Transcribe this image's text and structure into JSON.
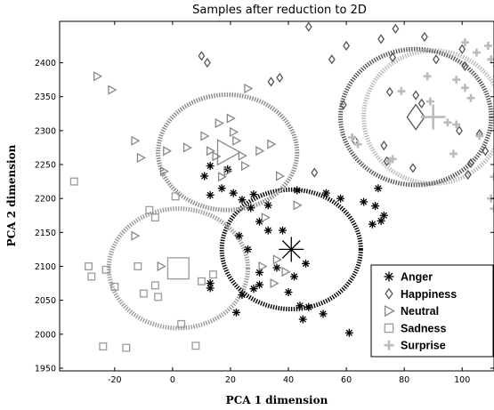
{
  "chart_data": {
    "type": "scatter",
    "title": "Samples after reduction to 2D",
    "xlabel": "PCA 1 dimension",
    "ylabel": "PCA 2 dimension",
    "xlim": [
      -39,
      111
    ],
    "ylim": [
      1946,
      2461
    ],
    "xticks": [
      -20,
      0,
      20,
      40,
      60,
      80,
      100
    ],
    "yticks": [
      1950,
      2000,
      2050,
      2100,
      2150,
      2200,
      2250,
      2300,
      2350,
      2400
    ],
    "grid": false,
    "legend_position": "bottom-right",
    "series": [
      {
        "name": "Anger",
        "marker": "asterisk",
        "color": "#000000",
        "centroid": [
          41,
          2125
        ],
        "radius": [
          24,
          88
        ],
        "points": [
          [
            13,
            2248
          ],
          [
            19,
            2243
          ],
          [
            11,
            2233
          ],
          [
            17,
            2215
          ],
          [
            13,
            2205
          ],
          [
            21,
            2208
          ],
          [
            28,
            2206
          ],
          [
            24,
            2198
          ],
          [
            27,
            2186
          ],
          [
            33,
            2190
          ],
          [
            43,
            2212
          ],
          [
            30,
            2166
          ],
          [
            23,
            2145
          ],
          [
            33,
            2153
          ],
          [
            38,
            2153
          ],
          [
            46,
            2104
          ],
          [
            42,
            2085
          ],
          [
            30,
            2073
          ],
          [
            40,
            2062
          ],
          [
            53,
            2208
          ],
          [
            58,
            2200
          ],
          [
            66,
            2195
          ],
          [
            70,
            2189
          ],
          [
            71,
            2215
          ],
          [
            72,
            2167
          ],
          [
            73,
            2175
          ],
          [
            69,
            2162
          ],
          [
            13,
            2075
          ],
          [
            13,
            2068
          ],
          [
            28,
            2067
          ],
          [
            24,
            2058
          ],
          [
            22,
            2032
          ],
          [
            44,
            2042
          ],
          [
            47,
            2040
          ],
          [
            52,
            2030
          ],
          [
            45,
            2022
          ],
          [
            61,
            2002
          ],
          [
            30,
            2091
          ],
          [
            36,
            2098
          ],
          [
            26,
            2125
          ]
        ]
      },
      {
        "name": "Happiness",
        "marker": "diamond",
        "color": "#555555",
        "centroid": [
          84,
          2320
        ],
        "radius": [
          26,
          100
        ],
        "points": [
          [
            10,
            2410
          ],
          [
            12,
            2400
          ],
          [
            47,
            2453
          ],
          [
            77,
            2450
          ],
          [
            72,
            2435
          ],
          [
            87,
            2438
          ],
          [
            60,
            2425
          ],
          [
            55,
            2405
          ],
          [
            76,
            2408
          ],
          [
            91,
            2405
          ],
          [
            100,
            2420
          ],
          [
            101,
            2395
          ],
          [
            37,
            2378
          ],
          [
            34,
            2372
          ],
          [
            75,
            2357
          ],
          [
            84,
            2352
          ],
          [
            59,
            2338
          ],
          [
            86,
            2340
          ],
          [
            63,
            2285
          ],
          [
            73,
            2278
          ],
          [
            99,
            2300
          ],
          [
            106,
            2295
          ],
          [
            108,
            2270
          ],
          [
            103,
            2252
          ],
          [
            102,
            2235
          ],
          [
            83,
            2245
          ],
          [
            74,
            2255
          ],
          [
            49,
            2238
          ]
        ]
      },
      {
        "name": "Neutral",
        "marker": "triangle-right",
        "color": "#888888",
        "centroid": [
          19,
          2268
        ],
        "radius": [
          24,
          85
        ],
        "points": [
          [
            -26,
            2380
          ],
          [
            -21,
            2360
          ],
          [
            -13,
            2285
          ],
          [
            -11,
            2260
          ],
          [
            -2,
            2270
          ],
          [
            5,
            2275
          ],
          [
            20,
            2318
          ],
          [
            16,
            2311
          ],
          [
            11,
            2292
          ],
          [
            13,
            2270
          ],
          [
            15,
            2262
          ],
          [
            21,
            2298
          ],
          [
            22,
            2285
          ],
          [
            24,
            2263
          ],
          [
            19,
            2240
          ],
          [
            17,
            2232
          ],
          [
            34,
            2280
          ],
          [
            30,
            2270
          ],
          [
            26,
            2362
          ],
          [
            37,
            2233
          ],
          [
            43,
            2190
          ],
          [
            36,
            2110
          ],
          [
            39,
            2092
          ],
          [
            31,
            2100
          ],
          [
            35,
            2075
          ],
          [
            -4,
            2100
          ],
          [
            -13,
            2145
          ],
          [
            25,
            2248
          ],
          [
            -3,
            2240
          ],
          [
            32,
            2172
          ]
        ]
      },
      {
        "name": "Sadness",
        "marker": "square",
        "color": "#9b9b9b",
        "centroid": [
          2,
          2097
        ],
        "radius": [
          24,
          88
        ],
        "points": [
          [
            -34,
            2225
          ],
          [
            -6,
            2172
          ],
          [
            -29,
            2100
          ],
          [
            -28,
            2085
          ],
          [
            -23,
            2095
          ],
          [
            -12,
            2100
          ],
          [
            -10,
            2060
          ],
          [
            -20,
            2070
          ],
          [
            -6,
            2072
          ],
          [
            -5,
            2055
          ],
          [
            10,
            2078
          ],
          [
            14,
            2088
          ],
          [
            3,
            2015
          ],
          [
            -24,
            1982
          ],
          [
            -16,
            1980
          ],
          [
            8,
            1983
          ],
          [
            1,
            2203
          ],
          [
            -8,
            2183
          ]
        ]
      },
      {
        "name": "Surprise",
        "marker": "plus",
        "color": "#bbbbbb",
        "centroid": [
          90,
          2320
        ],
        "radius": [
          24,
          98
        ],
        "points": [
          [
            109,
            2425
          ],
          [
            105,
            2415
          ],
          [
            110,
            2405
          ],
          [
            112,
            2380
          ],
          [
            88,
            2380
          ],
          [
            79,
            2358
          ],
          [
            98,
            2375
          ],
          [
            101,
            2363
          ],
          [
            103,
            2348
          ],
          [
            89,
            2343
          ],
          [
            95,
            2312
          ],
          [
            98,
            2309
          ],
          [
            76,
            2258
          ],
          [
            75,
            2255
          ],
          [
            111,
            2232
          ],
          [
            110,
            2200
          ],
          [
            111,
            2185
          ],
          [
            62,
            2290
          ],
          [
            64,
            2280
          ],
          [
            106,
            2292
          ],
          [
            97,
            2266
          ],
          [
            101,
            2430
          ],
          [
            112,
            2395
          ]
        ]
      }
    ]
  }
}
